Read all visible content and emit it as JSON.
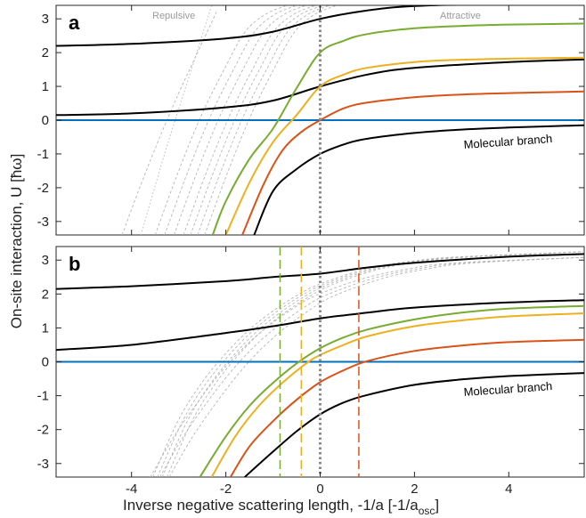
{
  "chart_data": [
    {
      "type": "line",
      "panel_label": "a",
      "x_range": [
        -5.6,
        5.6
      ],
      "y_range": [
        -3.4,
        3.4
      ],
      "region_labels": {
        "left": "Repulsive",
        "right": "Attractive"
      },
      "annotation": "Molecular branch",
      "colors": {
        "black": "#000000",
        "green": "#77ac30",
        "yellow": "#edb120",
        "orange": "#d95319",
        "blue": "#0072bd",
        "grey": "#b0b0b0"
      },
      "series": [
        {
          "color": "blue",
          "type": "hline",
          "y": 0
        },
        {
          "color": "black",
          "x": [
            -5.6,
            -4,
            -2,
            -1,
            0,
            1,
            2,
            4,
            5.6
          ],
          "y": [
            2.2,
            2.26,
            2.42,
            2.62,
            3.0,
            3.25,
            3.38,
            3.46,
            3.5
          ]
        },
        {
          "color": "black",
          "x": [
            -5.6,
            -4,
            -2,
            -1,
            0,
            1,
            2,
            4,
            5.6
          ],
          "y": [
            0.15,
            0.2,
            0.38,
            0.58,
            1.0,
            1.35,
            1.55,
            1.72,
            1.8
          ]
        },
        {
          "color": "green",
          "x": [
            -2.28,
            -2,
            -1.5,
            -1,
            -0.5,
            0,
            0.5,
            1,
            2,
            3,
            4,
            5.6
          ],
          "y": [
            -3.4,
            -2.4,
            -1.15,
            -0.25,
            0.95,
            2.0,
            2.35,
            2.55,
            2.72,
            2.79,
            2.83,
            2.86
          ]
        },
        {
          "color": "yellow",
          "x": [
            -2.0,
            -1.5,
            -1,
            -0.5,
            0,
            0.5,
            1,
            2,
            3,
            4,
            5.6
          ],
          "y": [
            -3.4,
            -1.85,
            -0.65,
            0.15,
            1.0,
            1.35,
            1.55,
            1.72,
            1.79,
            1.82,
            1.85
          ]
        },
        {
          "color": "orange",
          "x": [
            -1.65,
            -1.2,
            -0.8,
            -0.4,
            0,
            0.5,
            1,
            2,
            3,
            4,
            5.6
          ],
          "y": [
            -3.4,
            -1.9,
            -0.9,
            -0.35,
            0.0,
            0.35,
            0.52,
            0.68,
            0.76,
            0.8,
            0.85
          ]
        },
        {
          "color": "black",
          "x": [
            -1.4,
            -1,
            -0.5,
            0,
            0.5,
            1,
            2,
            3,
            4,
            5.6
          ],
          "y": [
            -3.4,
            -2.1,
            -1.45,
            -1.0,
            -0.72,
            -0.55,
            -0.38,
            -0.28,
            -0.22,
            -0.15
          ]
        }
      ],
      "grey_lines": [
        {
          "style": "dashed",
          "x": [
            -3.5,
            -3.0,
            -2.5,
            -2.0,
            -1.6,
            -1.2,
            -0.8,
            -0.4
          ],
          "y": [
            -3.4,
            -1.5,
            0.2,
            1.6,
            2.6,
            3.1,
            3.35,
            3.5
          ]
        },
        {
          "style": "dashed",
          "x": [
            -3.3,
            -2.8,
            -2.3,
            -1.8,
            -1.4,
            -1.0,
            -0.6,
            -0.2
          ],
          "y": [
            -3.4,
            -1.5,
            0.2,
            1.6,
            2.6,
            3.1,
            3.35,
            3.5
          ]
        },
        {
          "style": "dashed",
          "x": [
            -3.1,
            -2.6,
            -2.1,
            -1.6,
            -1.2,
            -0.8,
            -0.4,
            0.0
          ],
          "y": [
            -3.4,
            -1.5,
            0.2,
            1.6,
            2.6,
            3.1,
            3.35,
            3.5
          ]
        },
        {
          "style": "dashed",
          "x": [
            -2.9,
            -2.4,
            -1.9,
            -1.4,
            -1.0,
            -0.6,
            -0.2,
            0.2
          ],
          "y": [
            -3.4,
            -1.5,
            0.2,
            1.6,
            2.6,
            3.1,
            3.35,
            3.5
          ]
        },
        {
          "style": "dashed",
          "x": [
            -2.75,
            -2.25,
            -1.75,
            -1.25,
            -0.85,
            -0.45,
            -0.05,
            0.35
          ],
          "y": [
            -3.4,
            -1.5,
            0.2,
            1.6,
            2.6,
            3.1,
            3.35,
            3.5
          ]
        },
        {
          "style": "dashed",
          "x": [
            -2.6,
            -2.1,
            -1.6,
            -1.1,
            -0.7,
            -0.3,
            0.1,
            0.5
          ],
          "y": [
            -3.4,
            -1.5,
            0.2,
            1.6,
            2.6,
            3.1,
            3.35,
            3.5
          ]
        },
        {
          "style": "dashed",
          "x": [
            -2.45,
            -1.95,
            -1.45,
            -0.95,
            -0.55,
            -0.15,
            0.25,
            0.65
          ],
          "y": [
            -3.4,
            -1.5,
            0.2,
            1.6,
            2.6,
            3.1,
            3.35,
            3.5
          ]
        },
        {
          "style": "dashed",
          "x": [
            -4.2,
            -3.8,
            -3.4,
            -3.0,
            -2.6,
            -2.2
          ],
          "y": [
            -3.4,
            -1.9,
            -0.5,
            0.8,
            2.0,
            3.2
          ]
        },
        {
          "style": "dotted",
          "x": [
            -3.8,
            -3.3,
            -2.8,
            -2.3
          ],
          "y": [
            -3.4,
            -1.0,
            1.2,
            3.4
          ]
        }
      ],
      "vlines": [
        {
          "x": 0,
          "color": "grey",
          "style": "dotted-thick"
        }
      ],
      "xticks": [
        -4,
        -2,
        0,
        2,
        4
      ],
      "yticks": [
        -3,
        -2,
        -1,
        0,
        1,
        2,
        3
      ]
    },
    {
      "type": "line",
      "panel_label": "b",
      "x_range": [
        -5.6,
        5.6
      ],
      "y_range": [
        -3.4,
        3.4
      ],
      "annotation": "Molecular branch",
      "series": [
        {
          "color": "blue",
          "type": "hline",
          "y": 0
        },
        {
          "color": "black",
          "x": [
            -5.6,
            -4,
            -2,
            -1,
            0,
            1,
            2,
            4,
            5.6
          ],
          "y": [
            2.15,
            2.23,
            2.38,
            2.5,
            2.6,
            2.78,
            2.92,
            3.1,
            3.18
          ]
        },
        {
          "color": "black",
          "x": [
            -5.6,
            -4,
            -2,
            -1,
            0,
            1,
            2,
            4,
            5.6
          ],
          "y": [
            0.35,
            0.5,
            0.85,
            1.05,
            1.28,
            1.45,
            1.6,
            1.75,
            1.82
          ]
        },
        {
          "color": "green",
          "x": [
            -2.55,
            -2,
            -1.5,
            -1,
            -0.5,
            0,
            0.5,
            1,
            2,
            3,
            4,
            5.6
          ],
          "y": [
            -3.4,
            -2.2,
            -1.3,
            -0.62,
            -0.05,
            0.4,
            0.72,
            0.95,
            1.25,
            1.45,
            1.57,
            1.65
          ]
        },
        {
          "color": "yellow",
          "x": [
            -2.3,
            -1.8,
            -1.3,
            -0.8,
            -0.3,
            0,
            0.5,
            1,
            2,
            3,
            4,
            5.6
          ],
          "y": [
            -3.4,
            -2.2,
            -1.3,
            -0.62,
            -0.05,
            0.2,
            0.5,
            0.75,
            1.05,
            1.22,
            1.34,
            1.43
          ]
        },
        {
          "color": "orange",
          "x": [
            -1.9,
            -1.5,
            -1,
            -0.5,
            0,
            0.5,
            1,
            2,
            3,
            4,
            5.6
          ],
          "y": [
            -3.4,
            -2.5,
            -1.75,
            -1.12,
            -0.6,
            -0.25,
            0.02,
            0.32,
            0.48,
            0.58,
            0.65
          ]
        },
        {
          "color": "black",
          "x": [
            -1.6,
            -1,
            -0.5,
            0,
            0.5,
            1,
            2,
            3,
            4,
            5.6
          ],
          "y": [
            -3.4,
            -2.65,
            -2.05,
            -1.55,
            -1.2,
            -0.98,
            -0.68,
            -0.52,
            -0.42,
            -0.33
          ]
        }
      ],
      "grey_lines": [
        {
          "style": "dashed",
          "x": [
            -3.55,
            -3.0,
            -2.5,
            -2.0,
            -1.5,
            -1.0,
            -0.5,
            0.0,
            1.0,
            2.0,
            3.0,
            5.6
          ],
          "y": [
            -3.4,
            -1.7,
            -0.6,
            0.25,
            0.95,
            1.5,
            1.95,
            2.3,
            2.75,
            2.98,
            3.1,
            3.25
          ]
        },
        {
          "style": "dashed",
          "x": [
            -3.45,
            -2.9,
            -2.4,
            -1.9,
            -1.4,
            -0.9,
            -0.4,
            0.1,
            1.1,
            2.1,
            3.1,
            5.6
          ],
          "y": [
            -3.4,
            -1.7,
            -0.6,
            0.25,
            0.95,
            1.5,
            1.95,
            2.3,
            2.75,
            2.98,
            3.1,
            3.25
          ]
        },
        {
          "style": "dashed",
          "x": [
            -3.35,
            -2.8,
            -2.3,
            -1.8,
            -1.3,
            -0.8,
            -0.3,
            0.2,
            1.2,
            2.2,
            3.2,
            5.6
          ],
          "y": [
            -3.4,
            -1.7,
            -0.6,
            0.25,
            0.95,
            1.5,
            1.95,
            2.3,
            2.75,
            2.98,
            3.1,
            3.25
          ]
        },
        {
          "style": "dashed",
          "x": [
            -3.25,
            -2.7,
            -2.2,
            -1.7,
            -1.2,
            -0.7,
            -0.2,
            0.3,
            1.3,
            2.3,
            3.3,
            5.6
          ],
          "y": [
            -3.4,
            -1.7,
            -0.6,
            0.25,
            0.95,
            1.5,
            1.95,
            2.3,
            2.75,
            2.98,
            3.1,
            3.25
          ]
        },
        {
          "style": "dashed",
          "x": [
            -3.6,
            -3.1,
            -2.6,
            -2.1,
            -1.6,
            -1.1,
            -0.6,
            -0.1,
            0.9,
            1.9,
            2.9,
            5.6
          ],
          "y": [
            -3.4,
            -2.2,
            -1.2,
            -0.3,
            0.45,
            1.05,
            1.55,
            1.95,
            2.45,
            2.75,
            2.92,
            3.08
          ]
        },
        {
          "style": "dashed",
          "x": [
            -3.4,
            -2.9,
            -2.4,
            -1.9,
            -1.4,
            -0.9,
            -0.4,
            0.1,
            1.1,
            2.1,
            3.1,
            5.6
          ],
          "y": [
            -3.4,
            -2.2,
            -1.2,
            -0.3,
            0.45,
            1.05,
            1.55,
            1.95,
            2.45,
            2.75,
            2.92,
            3.08
          ]
        },
        {
          "style": "dashed",
          "x": [
            -3.2,
            -2.7,
            -2.2,
            -1.7,
            -1.2,
            -0.7,
            -0.2,
            0.3,
            1.3,
            2.3,
            3.3,
            5.6
          ],
          "y": [
            -3.4,
            -2.2,
            -1.2,
            -0.3,
            0.45,
            1.05,
            1.55,
            1.95,
            2.45,
            2.75,
            2.92,
            3.08
          ]
        }
      ],
      "vlines": [
        {
          "x": 0,
          "color": "grey",
          "style": "dotted-thick"
        },
        {
          "x": -0.85,
          "color": "green",
          "style": "dashed"
        },
        {
          "x": -0.4,
          "color": "yellow",
          "style": "dashed"
        },
        {
          "x": 0.82,
          "color": "orange",
          "style": "dashed"
        }
      ],
      "xticks": [
        -4,
        -2,
        0,
        2,
        4
      ],
      "yticks": [
        -3,
        -2,
        -1,
        0,
        1,
        2,
        3
      ]
    }
  ],
  "axes": {
    "xlabel_main": "Inverse negative scattering length, -1/a   [-1/a",
    "xlabel_sub": "osc",
    "xlabel_close": "]",
    "ylabel": "On-site interaction, U  [ħω]"
  }
}
